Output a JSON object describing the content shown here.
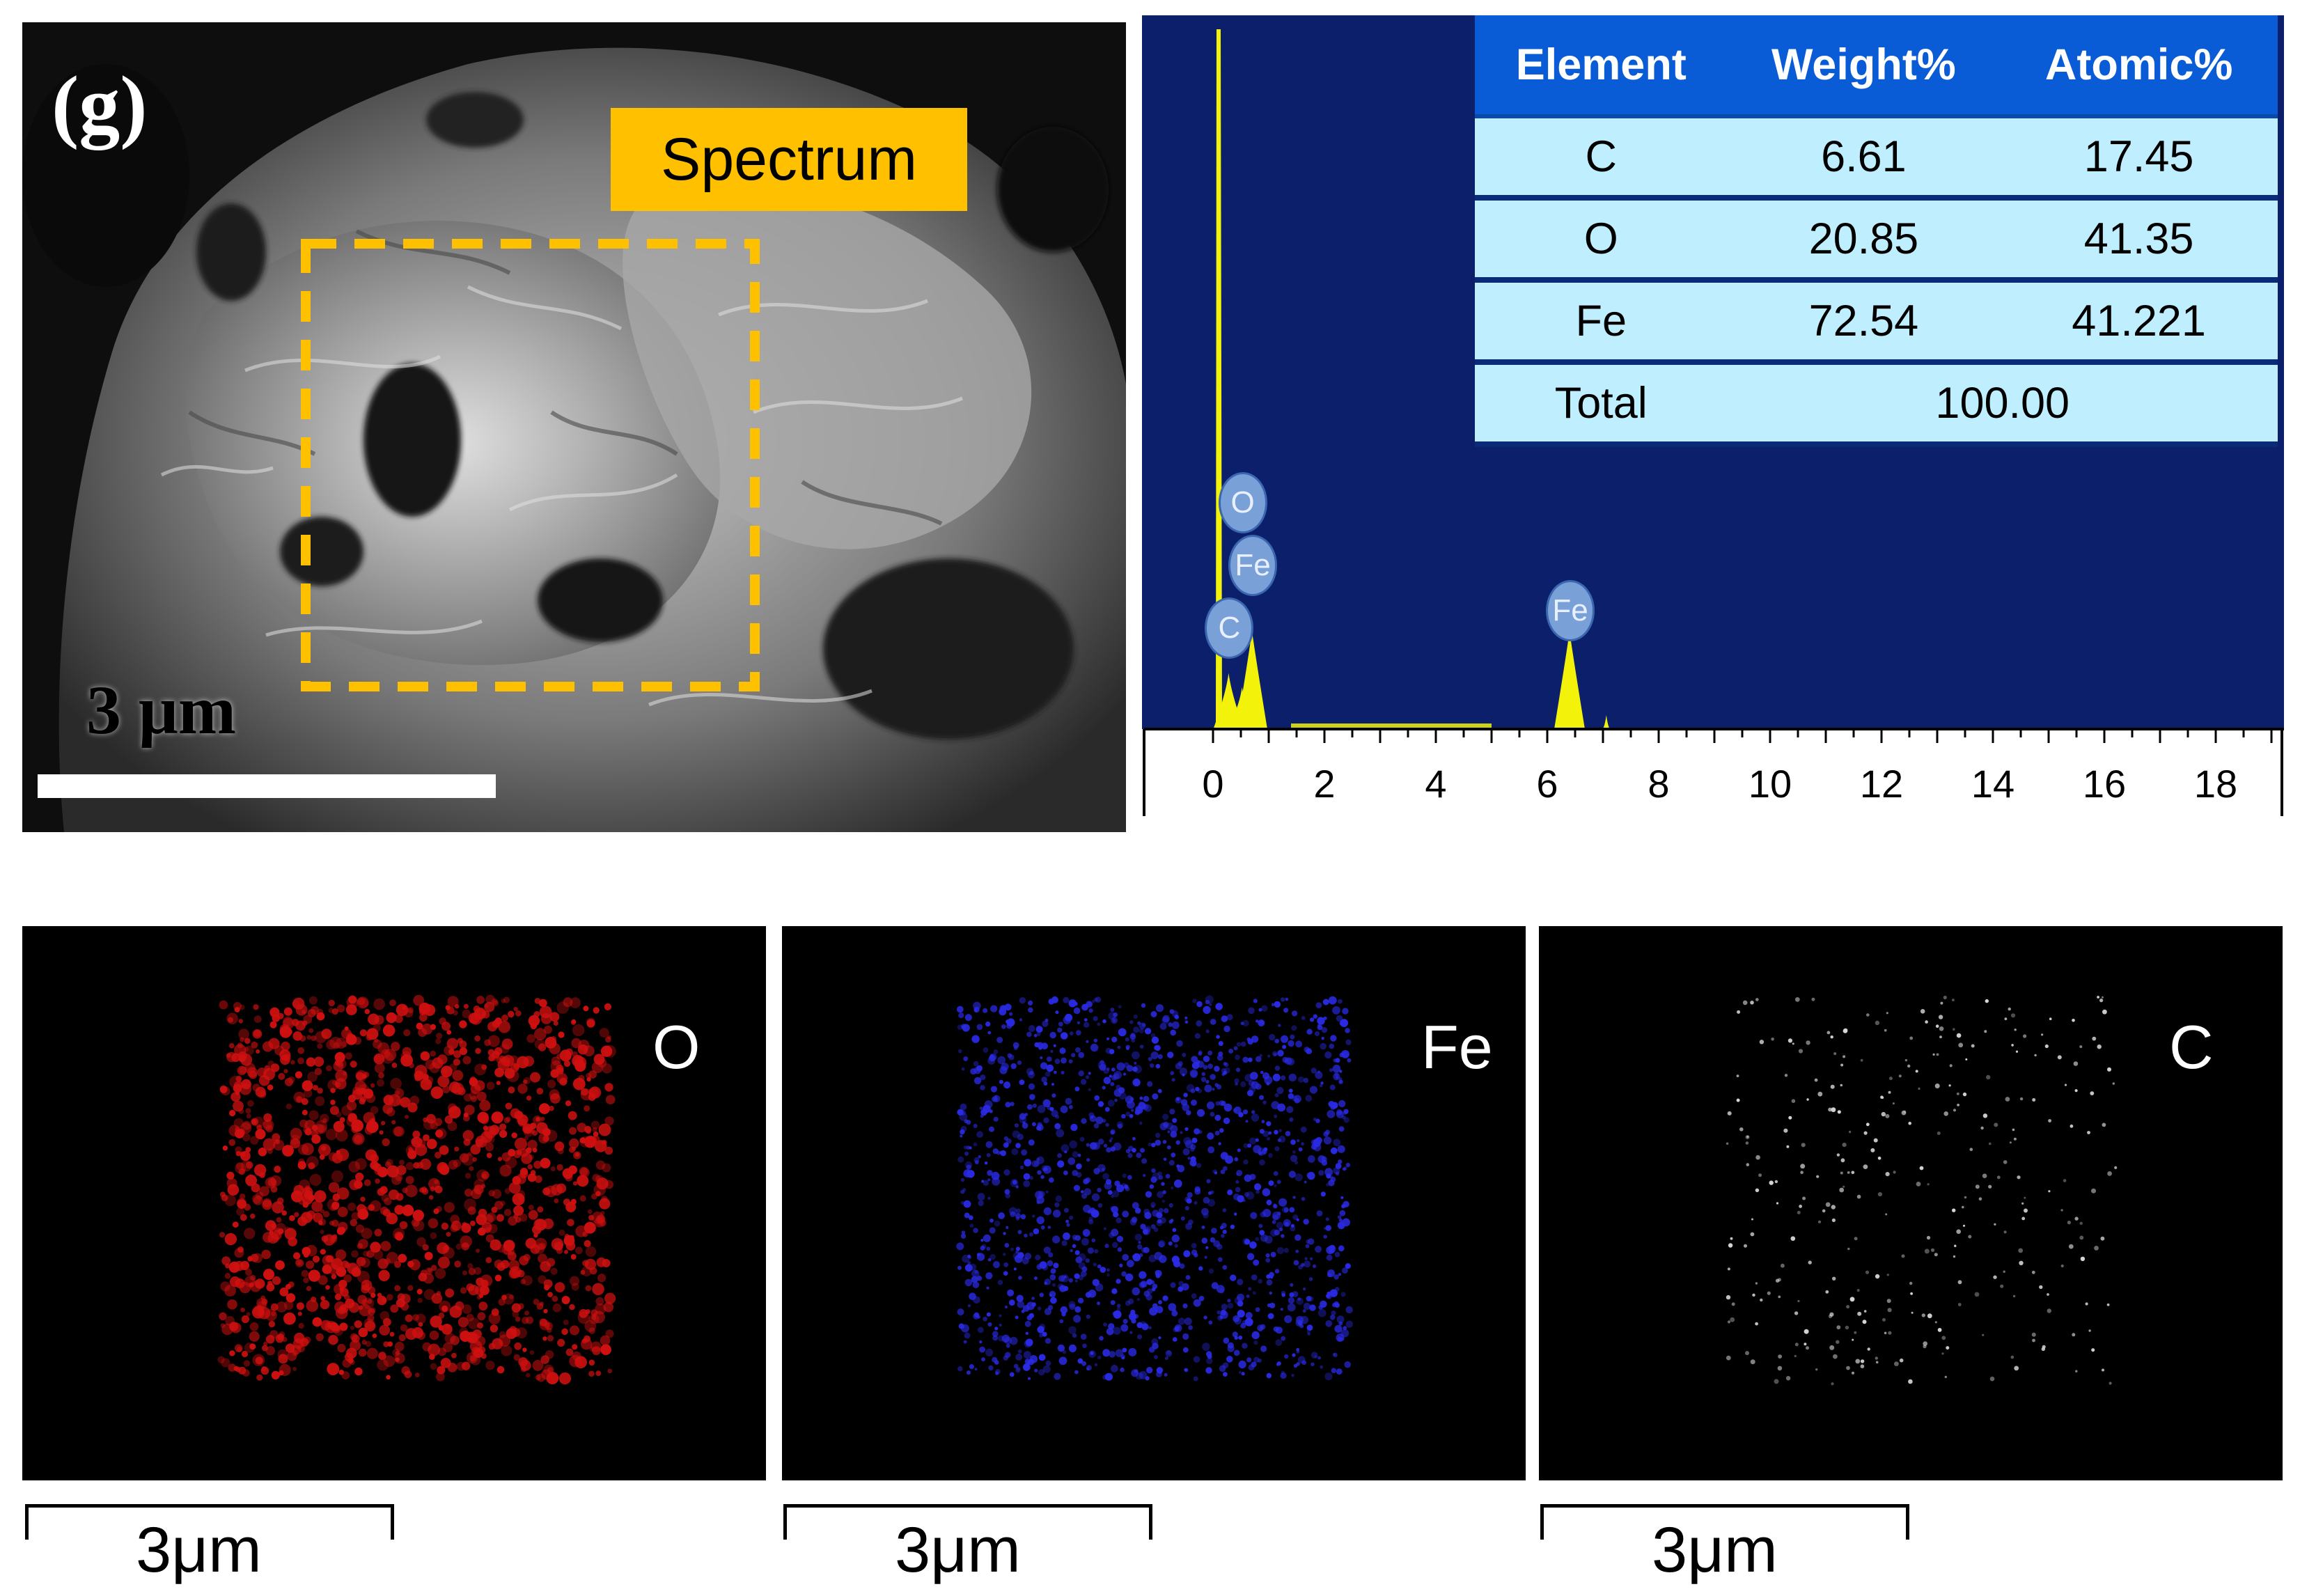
{
  "sem_image": {
    "panel_letter": "(g)",
    "spectrum_label": "Spectrum",
    "scale_label": "3 μm"
  },
  "eds": {
    "table": {
      "headers": [
        "Element",
        "Weight%",
        "Atomic%"
      ],
      "rows": [
        {
          "element": "C",
          "weight": "6.61",
          "atomic": "17.45"
        },
        {
          "element": "O",
          "weight": "20.85",
          "atomic": "41.35"
        },
        {
          "element": "Fe",
          "weight": "72.54",
          "atomic": "41.221"
        }
      ],
      "total_label": "Total",
      "total_value": "100.00"
    },
    "x_ticks": [
      "0",
      "2",
      "4",
      "6",
      "8",
      "10",
      "12",
      "14",
      "16",
      "18"
    ],
    "peak_labels": [
      {
        "text": "O",
        "energy": 0.52
      },
      {
        "text": "Fe",
        "energy": 0.7
      },
      {
        "text": "C",
        "energy": 0.28
      },
      {
        "text": "Fe",
        "energy": 6.4
      }
    ],
    "colors": {
      "background": "#0b1f6b",
      "spectrum": "#f2f20a",
      "header": "#0a5cd6",
      "cell": "#bfefff"
    }
  },
  "chart_data": {
    "type": "area",
    "x_range": [
      0,
      20
    ],
    "series": [
      {
        "x": [
          0.1,
          0.28,
          0.52,
          0.7,
          6.4,
          7.06
        ],
        "y": [
          1.0,
          0.08,
          0.06,
          0.14,
          0.14,
          0.02
        ]
      }
    ]
  },
  "maps": [
    {
      "label": "O",
      "color": "#d01010",
      "scale_label": "3μm"
    },
    {
      "label": "Fe",
      "color": "#2a2ae6",
      "scale_label": "3μm"
    },
    {
      "label": "C",
      "color": "#d8d8d8",
      "scale_label": "3μm"
    }
  ]
}
